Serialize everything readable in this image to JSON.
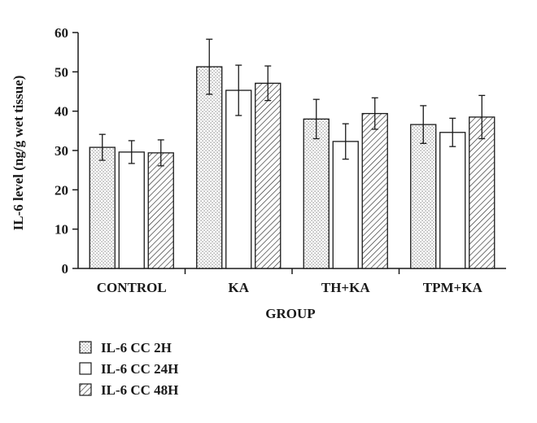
{
  "chart_data": {
    "type": "bar",
    "title": "",
    "xlabel": "GROUP",
    "ylabel": "IL-6 level (ng/g wet tissue)",
    "ylim": [
      0,
      60
    ],
    "yticks": [
      0,
      10,
      20,
      30,
      40,
      50,
      60
    ],
    "categories": [
      "CONTROL",
      "KA",
      "TH+KA",
      "TPM+KA"
    ],
    "series": [
      {
        "name": "IL-6 CC 2H",
        "pattern": "dots",
        "values": [
          30.8,
          51.3,
          38.0,
          36.6
        ],
        "errors": [
          3.3,
          7.0,
          5.0,
          4.8
        ]
      },
      {
        "name": "IL-6 CC 24H",
        "pattern": "none",
        "values": [
          29.6,
          45.3,
          32.3,
          34.6
        ],
        "errors": [
          2.9,
          6.4,
          4.5,
          3.6
        ]
      },
      {
        "name": "IL-6 CC 48H",
        "pattern": "diagonal",
        "values": [
          29.4,
          47.1,
          39.4,
          38.5
        ],
        "errors": [
          3.3,
          4.4,
          4.0,
          5.5
        ]
      }
    ],
    "grid": false,
    "legend_position": "bottom-left",
    "colors": {
      "ink": "#1a1a1a",
      "fill": "#ffffff"
    }
  }
}
